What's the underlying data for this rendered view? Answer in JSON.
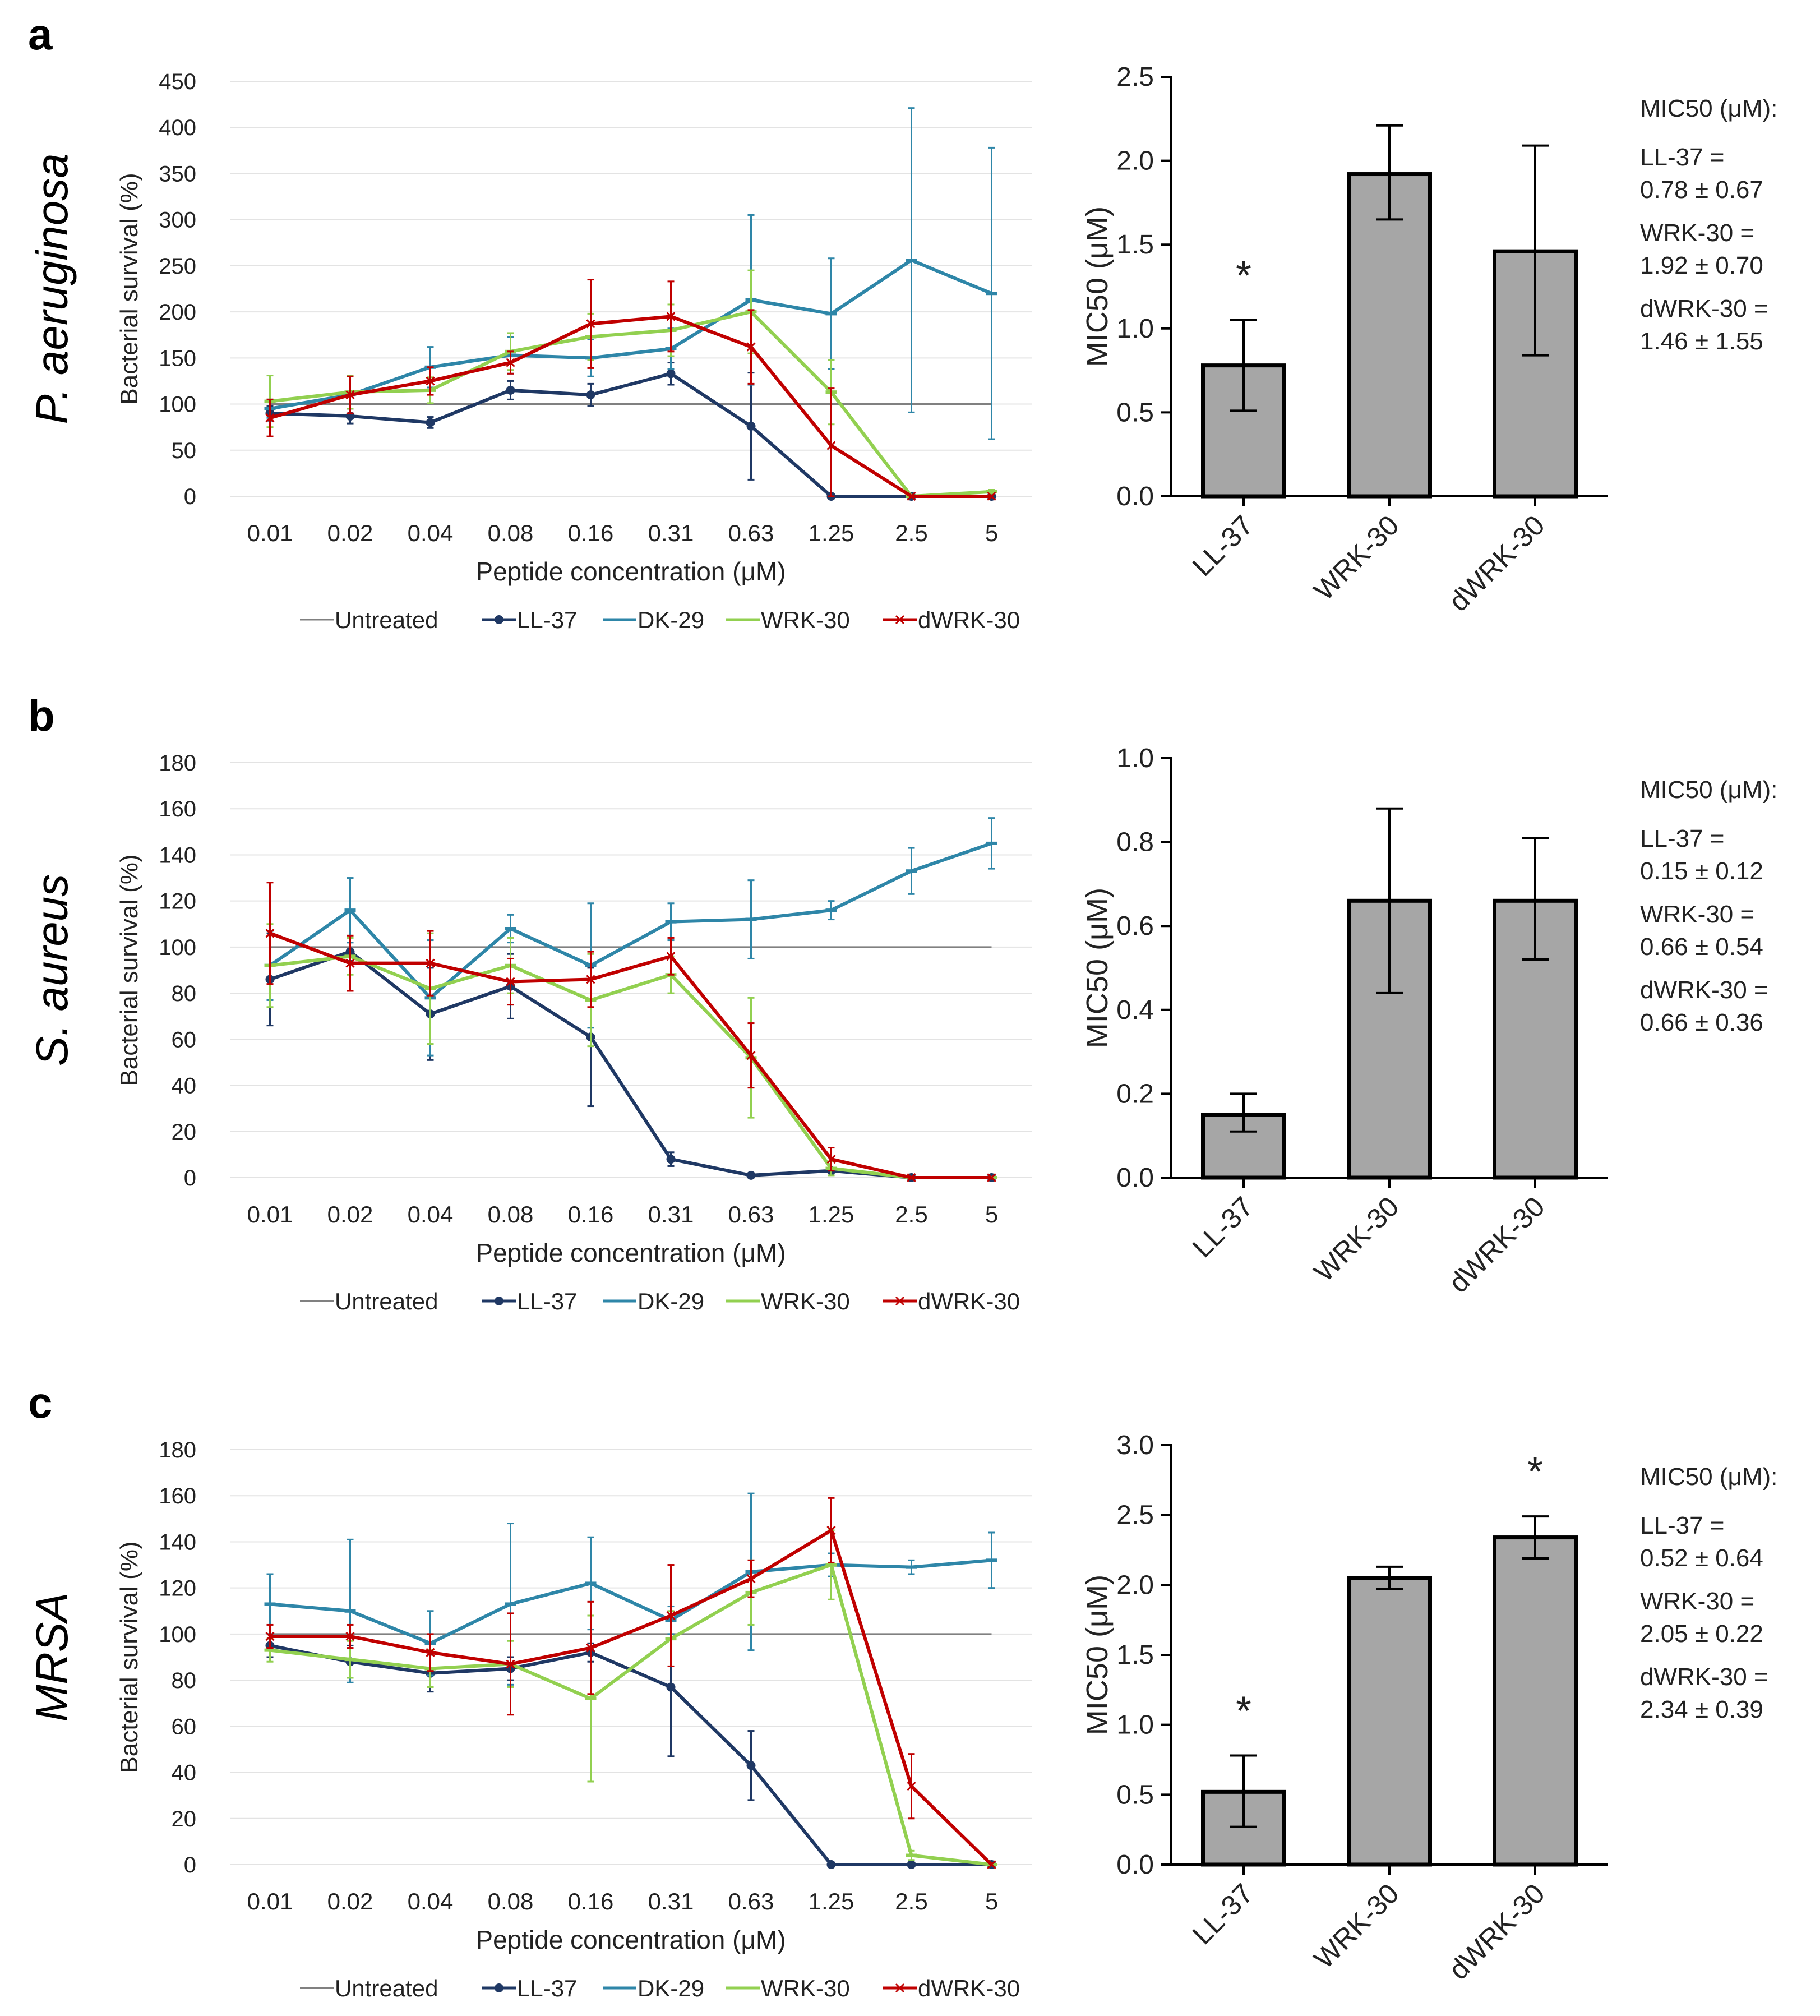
{
  "colors": {
    "untreated": "#808080",
    "ll37": "#1f3864",
    "dk29": "#2e86a8",
    "wrk30": "#92d050",
    "dwrk30": "#c00000",
    "bar_fill": "#a6a6a6",
    "grid": "#e3e3e3"
  },
  "panels": [
    {
      "letter": "a",
      "organism": "P. aeruginosa",
      "mic_header": "MIC50 (μM):",
      "mic_entries": [
        {
          "name": "LL-37 =",
          "value": "0.78 ± 0.67"
        },
        {
          "name": "WRK-30 =",
          "value": "1.92 ± 0.70"
        },
        {
          "name": "dWRK-30 =",
          "value": "1.46 ± 1.55"
        }
      ]
    },
    {
      "letter": "b",
      "organism": "S. aureus",
      "mic_header": "MIC50 (μM):",
      "mic_entries": [
        {
          "name": "LL-37 =",
          "value": "0.15 ± 0.12"
        },
        {
          "name": "WRK-30 =",
          "value": "0.66 ± 0.54"
        },
        {
          "name": "dWRK-30 =",
          "value": "0.66 ± 0.36"
        }
      ]
    },
    {
      "letter": "c",
      "organism": "MRSA",
      "mic_header": "MIC50 (μM):",
      "mic_entries": [
        {
          "name": "LL-37 =",
          "value": "0.52 ± 0.64"
        },
        {
          "name": "WRK-30 =",
          "value": "2.05 ± 0.22"
        },
        {
          "name": "dWRK-30 =",
          "value": "2.34 ± 0.39"
        }
      ]
    }
  ],
  "chart_data": [
    {
      "panel": "a",
      "type": "line",
      "xlabel": "Peptide concentration (μM)",
      "ylabel": "Bacterial survival (%)",
      "categories": [
        "0.01",
        "0.02",
        "0.04",
        "0.08",
        "0.16",
        "0.31",
        "0.63",
        "1.25",
        "2.5",
        "5"
      ],
      "ylim": [
        0,
        450
      ],
      "yticks": [
        0,
        50,
        100,
        150,
        200,
        250,
        300,
        350,
        400,
        450
      ],
      "legend": "bottom",
      "series": [
        {
          "name": "Untreated",
          "key": "untreated",
          "values": [
            100,
            100,
            100,
            100,
            100,
            100,
            100,
            100,
            100,
            100
          ],
          "err": null
        },
        {
          "name": "LL-37",
          "key": "ll37",
          "values": [
            90,
            87,
            80,
            115,
            110,
            133,
            76,
            0,
            0,
            0
          ],
          "err": [
            8,
            8,
            6,
            10,
            12,
            12,
            58,
            0,
            0,
            0
          ]
        },
        {
          "name": "DK-29",
          "key": "dk29",
          "values": [
            95,
            110,
            140,
            153,
            150,
            160,
            213,
            198,
            256,
            220
          ],
          "err": [
            10,
            20,
            22,
            20,
            20,
            22,
            92,
            60,
            165,
            158
          ]
        },
        {
          "name": "WRK-30",
          "key": "wrk30",
          "values": [
            103,
            113,
            115,
            157,
            173,
            180,
            200,
            113,
            0,
            5
          ],
          "err": [
            28,
            18,
            14,
            20,
            25,
            28,
            45,
            35,
            0,
            2
          ]
        },
        {
          "name": "dWRK-30",
          "key": "dwrk30",
          "values": [
            85,
            110,
            125,
            145,
            187,
            195,
            162,
            55,
            0,
            0
          ],
          "err": [
            20,
            20,
            15,
            12,
            48,
            38,
            40,
            62,
            0,
            0
          ]
        }
      ]
    },
    {
      "panel": "a",
      "type": "bar",
      "ylabel": "MIC50 (μM)",
      "categories": [
        "LL-37",
        "WRK-30",
        "dWRK-30"
      ],
      "values": [
        0.78,
        1.92,
        1.46
      ],
      "error_low": [
        0.51,
        1.65,
        0.84
      ],
      "error_high": [
        1.05,
        2.21,
        2.09
      ],
      "ylim": [
        0,
        2.5
      ],
      "yticks": [
        "0.0",
        "0.5",
        "1.0",
        "1.5",
        "2.0",
        "2.5"
      ],
      "annotations": [
        {
          "category": "LL-37",
          "text": "*"
        }
      ]
    },
    {
      "panel": "b",
      "type": "line",
      "xlabel": "Peptide concentration (μM)",
      "ylabel": "Bacterial survival (%)",
      "categories": [
        "0.01",
        "0.02",
        "0.04",
        "0.08",
        "0.16",
        "0.31",
        "0.63",
        "1.25",
        "2.5",
        "5"
      ],
      "ylim": [
        0,
        180
      ],
      "yticks": [
        0,
        20,
        40,
        60,
        80,
        100,
        120,
        140,
        160,
        180
      ],
      "legend": "bottom",
      "series": [
        {
          "name": "Untreated",
          "key": "untreated",
          "values": [
            100,
            100,
            100,
            100,
            100,
            100,
            100,
            100,
            100,
            100
          ],
          "err": null
        },
        {
          "name": "LL-37",
          "key": "ll37",
          "values": [
            86,
            98,
            71,
            83,
            61,
            8,
            1,
            3,
            0,
            0
          ],
          "err": [
            20,
            4,
            20,
            14,
            30,
            3,
            1,
            1,
            0,
            0
          ]
        },
        {
          "name": "DK-29",
          "key": "dk29",
          "values": [
            92,
            116,
            78,
            108,
            92,
            111,
            112,
            116,
            133,
            145
          ],
          "err": [
            15,
            14,
            25,
            6,
            27,
            8,
            17,
            4,
            10,
            11
          ]
        },
        {
          "name": "WRK-30",
          "key": "wrk30",
          "values": [
            92,
            96,
            82,
            92,
            77,
            88,
            52,
            4,
            0,
            0
          ],
          "err": [
            18,
            8,
            24,
            12,
            20,
            8,
            26,
            3,
            0,
            0
          ]
        },
        {
          "name": "dWRK-30",
          "key": "dwrk30",
          "values": [
            106,
            93,
            93,
            85,
            86,
            96,
            53,
            8,
            0,
            0
          ],
          "err": [
            22,
            12,
            14,
            10,
            12,
            8,
            14,
            5,
            0,
            0
          ]
        }
      ]
    },
    {
      "panel": "b",
      "type": "bar",
      "ylabel": "MIC50 (μM)",
      "categories": [
        "LL-37",
        "WRK-30",
        "dWRK-30"
      ],
      "values": [
        0.15,
        0.66,
        0.66
      ],
      "error_low": [
        0.11,
        0.44,
        0.52
      ],
      "error_high": [
        0.2,
        0.88,
        0.81
      ],
      "ylim": [
        0,
        1.0
      ],
      "yticks": [
        "0.0",
        "0.2",
        "0.4",
        "0.6",
        "0.8",
        "1.0"
      ],
      "annotations": []
    },
    {
      "panel": "c",
      "type": "line",
      "xlabel": "Peptide concentration (μM)",
      "ylabel": "Bacterial survival (%)",
      "categories": [
        "0.01",
        "0.02",
        "0.04",
        "0.08",
        "0.16",
        "0.31",
        "0.63",
        "1.25",
        "2.5",
        "5"
      ],
      "ylim": [
        0,
        180
      ],
      "yticks": [
        0,
        20,
        40,
        60,
        80,
        100,
        120,
        140,
        160,
        180
      ],
      "legend": "bottom",
      "series": [
        {
          "name": "Untreated",
          "key": "untreated",
          "values": [
            100,
            100,
            100,
            100,
            100,
            100,
            100,
            100,
            100,
            100
          ],
          "err": null
        },
        {
          "name": "LL-37",
          "key": "ll37",
          "values": [
            95,
            88,
            83,
            85,
            92,
            77,
            43,
            0,
            0,
            0
          ],
          "err": [
            5,
            7,
            8,
            5,
            4,
            30,
            15,
            0,
            0,
            0
          ]
        },
        {
          "name": "DK-29",
          "key": "dk29",
          "values": [
            113,
            110,
            96,
            113,
            122,
            106,
            127,
            130,
            129,
            132
          ],
          "err": [
            13,
            31,
            14,
            35,
            20,
            6,
            34,
            5,
            3,
            12
          ]
        },
        {
          "name": "WRK-30",
          "key": "wrk30",
          "values": [
            93,
            89,
            85,
            87,
            72,
            98,
            118,
            130,
            4,
            0
          ],
          "err": [
            5,
            8,
            8,
            10,
            36,
            12,
            14,
            15,
            2,
            0
          ]
        },
        {
          "name": "dWRK-30",
          "key": "dwrk30",
          "values": [
            99,
            99,
            92,
            87,
            94,
            108,
            124,
            145,
            34,
            0
          ],
          "err": [
            5,
            5,
            8,
            22,
            20,
            22,
            8,
            14,
            14,
            0
          ]
        }
      ]
    },
    {
      "panel": "c",
      "type": "bar",
      "ylabel": "MIC50 (μM)",
      "categories": [
        "LL-37",
        "WRK-30",
        "dWRK-30"
      ],
      "values": [
        0.52,
        2.05,
        2.34
      ],
      "error_low": [
        0.27,
        1.97,
        2.19
      ],
      "error_high": [
        0.78,
        2.13,
        2.49
      ],
      "ylim": [
        0,
        3.0
      ],
      "yticks": [
        "0.0",
        "0.5",
        "1.0",
        "1.5",
        "2.0",
        "2.5",
        "3.0"
      ],
      "annotations": [
        {
          "category": "LL-37",
          "text": "*"
        },
        {
          "category": "dWRK-30",
          "text": "*"
        }
      ]
    }
  ]
}
